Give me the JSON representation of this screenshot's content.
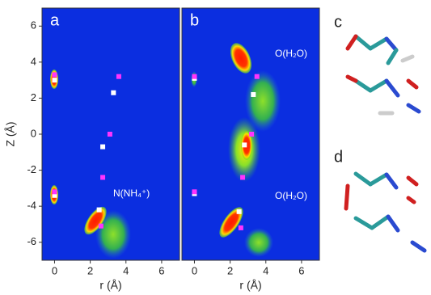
{
  "chart_data": [
    {
      "type": "scatter",
      "title": "a",
      "xlabel": "r (Å)",
      "ylabel": "Z (Å)",
      "xlim": [
        -0.7,
        7
      ],
      "ylim": [
        -7,
        7
      ],
      "xticks": [
        0,
        2,
        4,
        6
      ],
      "yticks": [
        -6,
        -4,
        -2,
        0,
        2,
        4,
        6
      ],
      "annotations": [
        "N(NH₄⁺)"
      ],
      "series": [
        {
          "color": "#ffffff",
          "x": [
            0,
            3.3,
            2.7,
            0,
            2.5
          ],
          "values": [
            3.0,
            2.3,
            -0.7,
            -3.4,
            -4.2
          ]
        },
        {
          "color": "#ff33ff",
          "x": [
            0,
            3.6,
            3.1,
            2.7,
            0,
            2.6
          ],
          "values": [
            3.3,
            3.2,
            0,
            -2.4,
            -3.2,
            -5.1
          ]
        }
      ]
    },
    {
      "type": "scatter",
      "title": "b",
      "xlabel": "r (Å)",
      "xlim": [
        -0.7,
        7
      ],
      "ylim": [
        -7,
        7
      ],
      "xticks": [
        0,
        2,
        4,
        6
      ],
      "annotations": [
        "O(H₂O)",
        "O(H₂O)"
      ],
      "series": [
        {
          "color": "#ffffff",
          "x": [
            0,
            3.3,
            2.8,
            0,
            2.5
          ],
          "values": [
            3.1,
            2.2,
            -0.6,
            -3.3,
            -4.3
          ]
        },
        {
          "color": "#ff33ff",
          "x": [
            0,
            3.5,
            3.2,
            2.7,
            0,
            2.6
          ],
          "values": [
            3.2,
            3.2,
            0,
            -2.4,
            -3.2,
            -5.2
          ]
        }
      ]
    }
  ],
  "structure_labels": [
    "c",
    "d"
  ]
}
